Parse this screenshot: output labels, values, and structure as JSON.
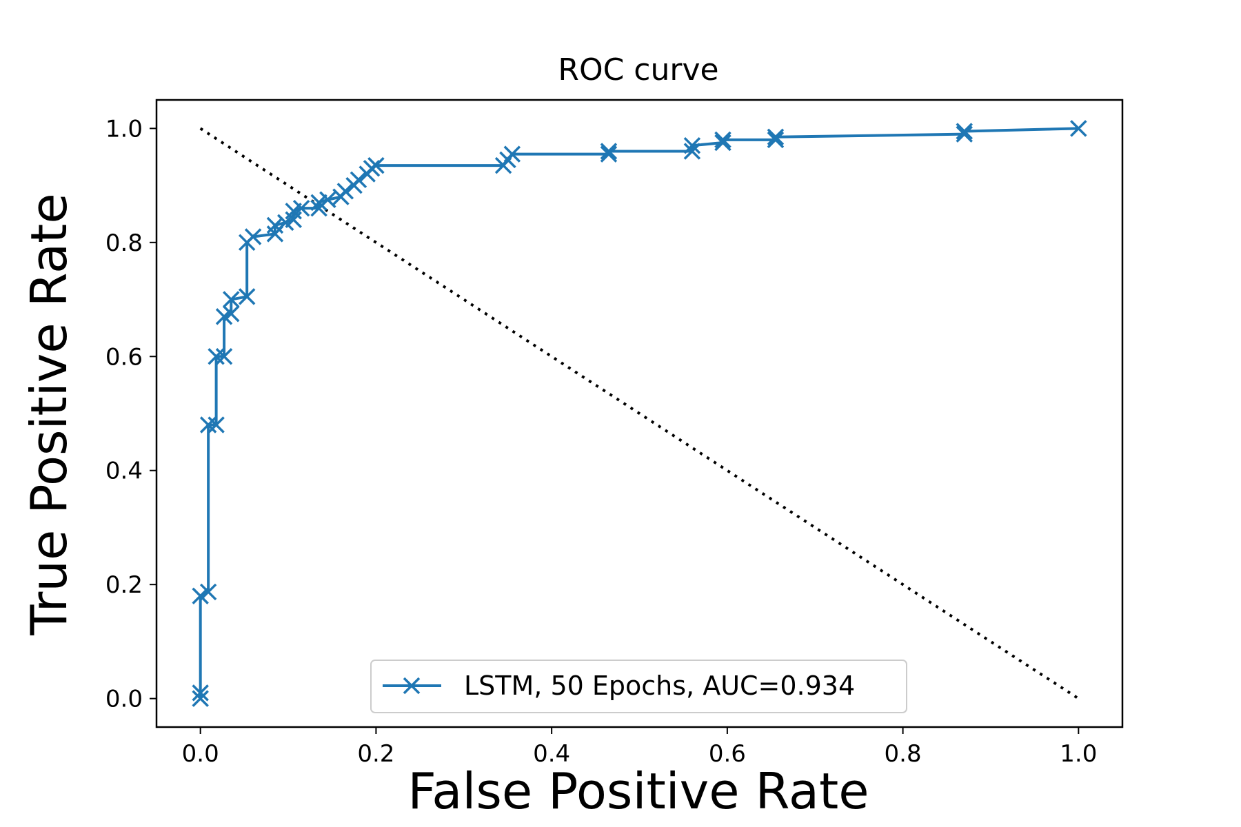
{
  "chart_data": {
    "type": "line",
    "title": "ROC curve",
    "xlabel": "False Positive Rate",
    "ylabel": "True Positive Rate",
    "xlim": [
      -0.05,
      1.05
    ],
    "ylim": [
      -0.05,
      1.05
    ],
    "x_ticks": [
      "0.0",
      "0.2",
      "0.4",
      "0.6",
      "0.8",
      "1.0"
    ],
    "y_ticks": [
      "0.0",
      "0.2",
      "0.4",
      "0.6",
      "0.8",
      "1.0"
    ],
    "grid": false,
    "legend_position": "lower center",
    "series": [
      {
        "name": "LSTM, 50 Epochs, AUC=0.934",
        "color": "#1f77b4",
        "marker": "x",
        "points": [
          [
            0.0,
            0.0
          ],
          [
            0.0,
            0.01
          ],
          [
            0.0,
            0.18
          ],
          [
            0.009,
            0.187
          ],
          [
            0.009,
            0.48
          ],
          [
            0.018,
            0.48
          ],
          [
            0.018,
            0.6
          ],
          [
            0.027,
            0.6
          ],
          [
            0.027,
            0.67
          ],
          [
            0.035,
            0.675
          ],
          [
            0.035,
            0.7
          ],
          [
            0.053,
            0.705
          ],
          [
            0.053,
            0.8
          ],
          [
            0.06,
            0.81
          ],
          [
            0.085,
            0.815
          ],
          [
            0.085,
            0.83
          ],
          [
            0.097,
            0.835
          ],
          [
            0.106,
            0.84
          ],
          [
            0.106,
            0.855
          ],
          [
            0.115,
            0.86
          ],
          [
            0.135,
            0.86
          ],
          [
            0.135,
            0.87
          ],
          [
            0.145,
            0.875
          ],
          [
            0.16,
            0.88
          ],
          [
            0.165,
            0.89
          ],
          [
            0.175,
            0.9
          ],
          [
            0.18,
            0.91
          ],
          [
            0.19,
            0.92
          ],
          [
            0.195,
            0.93
          ],
          [
            0.2,
            0.935
          ],
          [
            0.345,
            0.935
          ],
          [
            0.35,
            0.945
          ],
          [
            0.355,
            0.955
          ],
          [
            0.465,
            0.955
          ],
          [
            0.465,
            0.96
          ],
          [
            0.56,
            0.96
          ],
          [
            0.56,
            0.97
          ],
          [
            0.595,
            0.975
          ],
          [
            0.595,
            0.98
          ],
          [
            0.655,
            0.98
          ],
          [
            0.655,
            0.985
          ],
          [
            0.87,
            0.99
          ],
          [
            0.87,
            0.995
          ],
          [
            1.0,
            1.0
          ]
        ]
      },
      {
        "name": "",
        "color": "#000000",
        "style": "dotted",
        "points": [
          [
            0.0,
            1.0
          ],
          [
            1.0,
            0.0
          ]
        ]
      }
    ]
  }
}
